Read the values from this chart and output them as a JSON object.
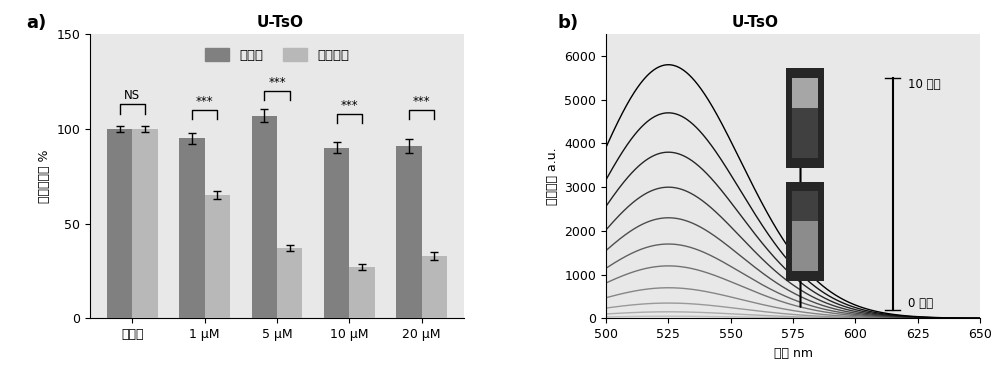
{
  "title": "U-TsO",
  "panel_a": {
    "label": "a)",
    "ylabel": "细胞存活率 %",
    "categories": [
      "控制组",
      "1 μM",
      "5 μM",
      "10 μM",
      "20 μM"
    ],
    "untreated_means": [
      100,
      95,
      107,
      90,
      91
    ],
    "untreated_errors": [
      1.5,
      3.0,
      3.5,
      3.0,
      3.5
    ],
    "laser_means": [
      100,
      65,
      37,
      27,
      33
    ],
    "laser_errors": [
      1.5,
      2.0,
      1.5,
      1.5,
      2.0
    ],
    "untreated_color": "#808080",
    "laser_color": "#b8b8b8",
    "ylim": [
      0,
      150
    ],
    "yticks": [
      0,
      50,
      100,
      150
    ],
    "significance": [
      "NS",
      "***",
      "***",
      "***",
      "***"
    ],
    "legend_untreated": "未处理",
    "legend_laser": "激光照射",
    "bg_color": "#e8e8e8"
  },
  "panel_b": {
    "label": "b)",
    "ylabel": "荧光强度 a.u.",
    "xlabel": "波长 nm",
    "xlim": [
      500,
      650
    ],
    "ylim": [
      0,
      6500
    ],
    "yticks": [
      0,
      1000,
      2000,
      3000,
      4000,
      5000,
      6000
    ],
    "xticks": [
      500,
      525,
      550,
      575,
      600,
      625,
      650
    ],
    "peak_wavelength": 525,
    "num_curves": 11,
    "peak_values": [
      50,
      150,
      350,
      700,
      1200,
      1700,
      2300,
      3000,
      3800,
      4700,
      5800
    ],
    "annotation_top": "10 分钟",
    "annotation_bottom": "0 分钟",
    "bg_color": "#e8e8e8"
  }
}
